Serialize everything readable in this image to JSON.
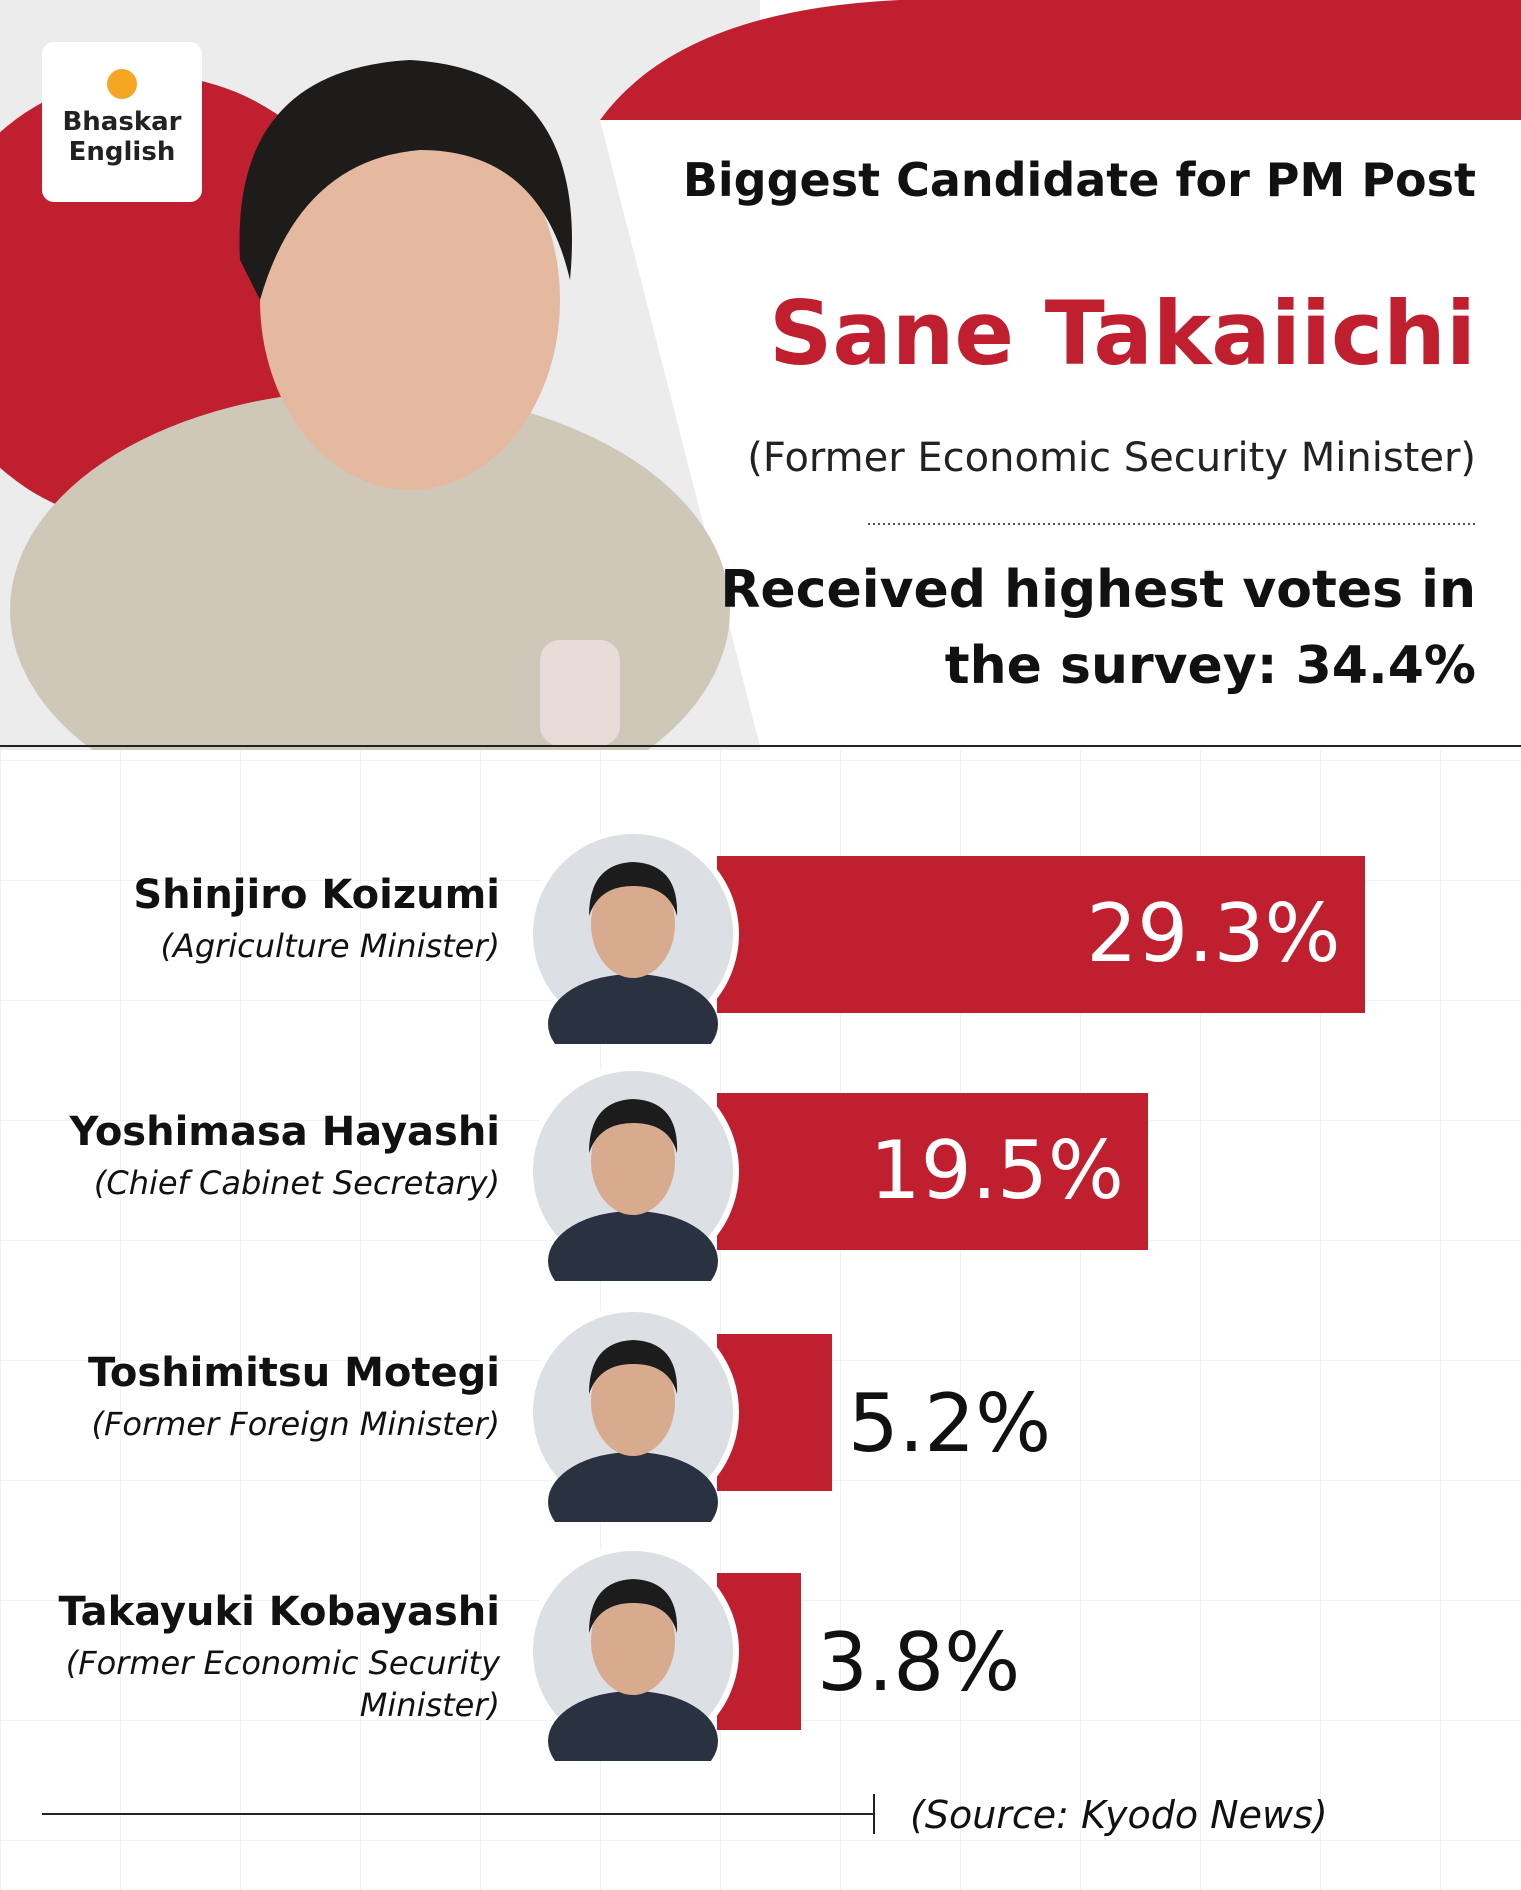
{
  "brand": [
    "Bhaskar",
    "English"
  ],
  "headline": "Biggest Candidate for PM Post",
  "name": "Sane Takaiichi",
  "role": "(Former Economic Security Minister)",
  "highlight": [
    "Received highest votes in",
    "the survey: 34.4%"
  ],
  "chart_data": {
    "type": "bar",
    "orientation": "horizontal",
    "categories": [
      "Shinjiro Koizumi",
      "Yoshimasa Hayashi",
      "Toshimitsu Motegi",
      "Takayuki Kobayashi"
    ],
    "roles": [
      "(Agriculture Minister)",
      "(Chief Cabinet Secretary)",
      "(Former Foreign Minister)",
      "(Former Economic Security Minister)"
    ],
    "values": [
      29.3,
      19.5,
      5.2,
      3.8
    ],
    "value_labels": [
      "29.3%",
      "19.5%",
      "5.2%",
      "3.8%"
    ],
    "color": "#c01f2f"
  },
  "source": "(Source: Kyodo News)"
}
